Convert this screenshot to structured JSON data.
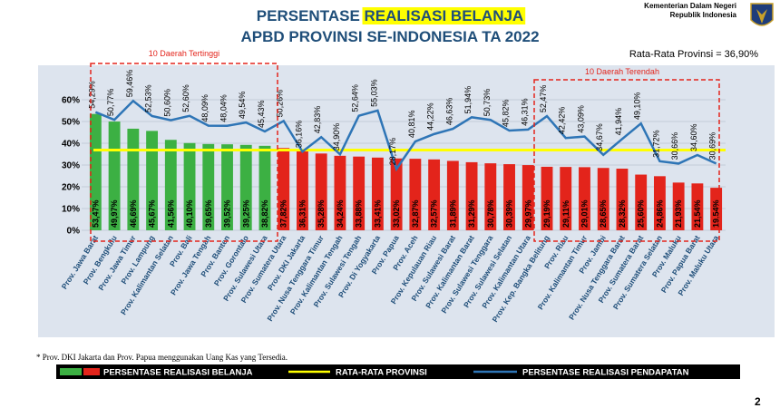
{
  "header": {
    "title_prefix": "PERSENTASE ",
    "title_highlight": "REALISASI BELANJA",
    "title_line2": "APBD PROVINSI SE-INDONESIA TA 2022",
    "ministry_line1": "Kementerian Dalam Negeri",
    "ministry_line2": "Republik Indonesia",
    "average_note": "Rata-Rata Provinsi = 36,90%",
    "top_group_label": "10 Daerah Tertinggi",
    "bottom_group_label": "10 Daerah Terendah",
    "page_number": "2"
  },
  "footnote": "* Prov. DKI Jakarta dan Prov. Papua menggunakan Uang Kas yang Tersedia.",
  "legend": {
    "spending": "PERSENTASE REALISASI BELANJA",
    "average": "RATA-RATA PROVINSI",
    "revenue": "PERSENTASE REALISASI PENDAPATAN"
  },
  "colors": {
    "title": "#1f4e79",
    "highlight": "#ffff00",
    "top10_bar": "#3cb043",
    "other_bar": "#e3241b",
    "average_line": "#ffff00",
    "revenue_line": "#2e75b6",
    "group_box": "#e3241b",
    "plot_bg": "#dfe6f0"
  },
  "chart_data": {
    "type": "bar",
    "ylim": [
      0,
      60
    ],
    "yticks": [
      "0%",
      "10%",
      "20%",
      "30%",
      "40%",
      "50%",
      "60%"
    ],
    "average": 36.9,
    "categories": [
      "Prov. Jawa Barat",
      "Prov. Bengkulu",
      "Prov. Jawa Timur",
      "Prov. Lampung",
      "Prov. Kalimantan Selatan",
      "Prov. Bali",
      "Prov. Jawa Tengah",
      "Prov. Banten",
      "Prov. Gorontalo",
      "Prov. Sulawesi Utara",
      "Prov. Sumatera Utara",
      "Prov. DKI Jakarta",
      "Prov. Nusa Tenggara Timur",
      "Prov. Kalimantan Tengah",
      "Prov. Sulawesi Tengah",
      "Prov. Di Yogyakarta",
      "Prov. Papua",
      "Prov. Aceh",
      "Prov. Kepulauan Riau",
      "Prov. Sulawesi Barat",
      "Prov. Kalimantan Barat",
      "Prov. Sulawesi Tenggara",
      "Prov. Sulawesi Selatan",
      "Prov. Kalimantan Utara",
      "Prov. Kep. Bangka Belitung",
      "Prov. Riau",
      "Prov. Kalimantan Timur",
      "Prov. Jambi",
      "Prov. Nusa Tenggara Barat",
      "Prov. Sumatera Barat",
      "Prov. Sumatera Selatan",
      "Prov. Maluku",
      "Prov. Papua Barat",
      "Prov. Maluku Utara"
    ],
    "series": [
      {
        "name": "PERSENTASE REALISASI BELANJA",
        "values": [
          53.47,
          49.97,
          46.69,
          45.67,
          41.56,
          40.1,
          39.65,
          39.52,
          39.25,
          38.82,
          37.82,
          36.31,
          35.28,
          34.24,
          33.88,
          33.41,
          33.02,
          32.87,
          32.57,
          31.89,
          31.29,
          30.78,
          30.39,
          29.97,
          29.19,
          29.11,
          29.01,
          28.65,
          28.32,
          25.6,
          24.86,
          21.93,
          21.54,
          19.54
        ],
        "labels": [
          "53,47%",
          "49,97%",
          "46,69%",
          "45,67%",
          "41,56%",
          "40,10%",
          "39,65%",
          "39,52%",
          "39,25%",
          "38,82%",
          "37,82%",
          "36,31%",
          "35,28%",
          "34,24%",
          "33,88%",
          "33,41%",
          "33,02%",
          "32,87%",
          "32,57%",
          "31,89%",
          "31,29%",
          "30,78%",
          "30,39%",
          "29,97%",
          "29,19%",
          "29,11%",
          "29,01%",
          "28,65%",
          "28,32%",
          "25,60%",
          "24,86%",
          "21,93%",
          "21,54%",
          "19,54%"
        ]
      },
      {
        "name": "PERSENTASE REALISASI PENDAPATAN",
        "values": [
          54.29,
          50.77,
          59.46,
          52.53,
          50.6,
          52.6,
          48.09,
          48.04,
          49.54,
          45.43,
          50.26,
          36.16,
          42.83,
          34.9,
          52.64,
          55.03,
          28.17,
          40.81,
          44.22,
          46.63,
          51.94,
          50.73,
          45.82,
          46.31,
          52.47,
          42.42,
          43.09,
          34.67,
          41.94,
          49.1,
          31.72,
          30.66,
          34.6,
          30.69
        ],
        "labels": [
          "54,29%",
          "50,77%",
          "59,46%",
          "52,53%",
          "50,60%",
          "52,60%",
          "48,09%",
          "48,04%",
          "49,54%",
          "45,43%",
          "50,26%",
          "36,16%",
          "42,83%",
          "34,90%",
          "52,64%",
          "55,03%",
          "28,17%",
          "40,81%",
          "44,22%",
          "46,63%",
          "51,94%",
          "50,73%",
          "45,82%",
          "46,31%",
          "52,47%",
          "42,42%",
          "43,09%",
          "34,67%",
          "41,94%",
          "49,10%",
          "31,72%",
          "30,66%",
          "34,60%",
          "30,69%"
        ]
      }
    ]
  }
}
